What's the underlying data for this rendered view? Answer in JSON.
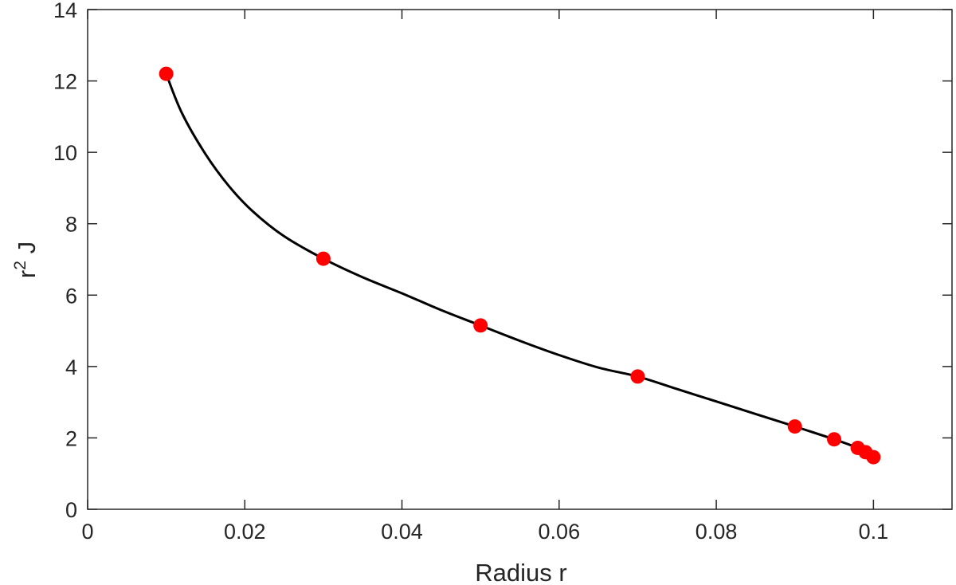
{
  "chart_data": {
    "type": "scatter",
    "xlabel": "Radius r",
    "ylabel": {
      "base": "r",
      "superscript": "2",
      "rest": " J"
    },
    "xlim": [
      0,
      0.11
    ],
    "ylim": [
      0,
      14
    ],
    "x_ticks": [
      0,
      0.02,
      0.04,
      0.06,
      0.08,
      0.1
    ],
    "x_tick_labels": [
      "0",
      "0.02",
      "0.04",
      "0.06",
      "0.08",
      "0.1"
    ],
    "y_ticks": [
      0,
      2,
      4,
      6,
      8,
      10,
      12,
      14
    ],
    "y_tick_labels": [
      "0",
      "2",
      "4",
      "6",
      "8",
      "10",
      "12",
      "14"
    ],
    "grid": false,
    "colors": {
      "curve": "#000000",
      "markers": "#ff0000",
      "axes": "#262626"
    },
    "series": [
      {
        "style": "line",
        "x": [
          0.01,
          0.012,
          0.015,
          0.018,
          0.021,
          0.025,
          0.03,
          0.035,
          0.04,
          0.045,
          0.05,
          0.055,
          0.06,
          0.065,
          0.07,
          0.075,
          0.08,
          0.085,
          0.09,
          0.095,
          0.098,
          0.099,
          0.1
        ],
        "y": [
          12.2,
          11.1,
          9.95,
          9.05,
          8.35,
          7.65,
          7.02,
          6.5,
          6.05,
          5.58,
          5.15,
          4.72,
          4.32,
          3.97,
          3.72,
          3.37,
          3.02,
          2.67,
          2.32,
          1.96,
          1.72,
          1.6,
          1.46
        ]
      },
      {
        "style": "markers",
        "x": [
          0.01,
          0.03,
          0.05,
          0.07,
          0.09,
          0.095,
          0.098,
          0.099,
          0.1
        ],
        "y": [
          12.2,
          7.02,
          5.15,
          3.72,
          2.32,
          1.96,
          1.72,
          1.6,
          1.46
        ]
      }
    ]
  }
}
